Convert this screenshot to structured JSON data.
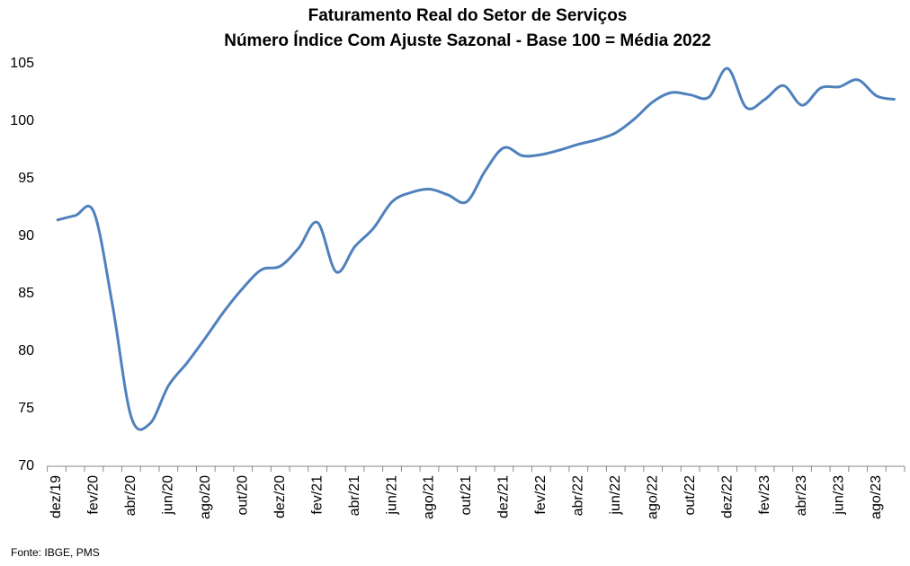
{
  "chart_data": {
    "type": "line",
    "title": "Faturamento Real do Setor de Serviços",
    "subtitle": "Número Índice Com Ajuste Sazonal - Base 100 = Média 2022",
    "source": "Fonte: IBGE, PMS",
    "categories": [
      "dez/19",
      null,
      "fev/20",
      null,
      "abr/20",
      null,
      "jun/20",
      null,
      "ago/20",
      null,
      "out/20",
      null,
      "dez/20",
      null,
      "fev/21",
      null,
      "abr/21",
      null,
      "jun/21",
      null,
      "ago/21",
      null,
      "out/21",
      null,
      "dez/21",
      null,
      "fev/22",
      null,
      "abr/22",
      null,
      "jun/22",
      null,
      "ago/22",
      null,
      "out/22",
      null,
      "dez/22",
      null,
      "fev/23",
      null,
      "abr/23",
      null,
      "jun/23",
      null,
      "ago/23",
      null
    ],
    "series": [
      {
        "name": "Faturamento Real",
        "color": "#4f81bd",
        "values": [
          91.4,
          91.8,
          92.1,
          84.0,
          74.3,
          73.7,
          77.0,
          79.0,
          81.2,
          83.5,
          85.5,
          87.1,
          87.4,
          89.0,
          91.2,
          86.9,
          89.1,
          90.7,
          93.0,
          93.8,
          94.1,
          93.6,
          93.0,
          95.7,
          97.7,
          97.0,
          97.1,
          97.5,
          98.0,
          98.4,
          99.0,
          100.2,
          101.7,
          102.5,
          102.3,
          102.1,
          104.6,
          101.2,
          101.9,
          103.1,
          101.4,
          102.9,
          103.0,
          103.6,
          102.2,
          101.9
        ]
      }
    ],
    "ylim": [
      70,
      105
    ],
    "yticks": [
      70,
      75,
      80,
      85,
      90,
      95,
      100,
      105
    ],
    "grid": false
  }
}
